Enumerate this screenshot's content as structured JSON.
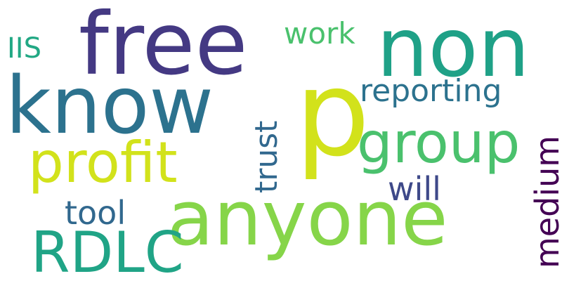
{
  "words": {
    "free": {
      "text": "free",
      "color": "#443983"
    },
    "non": {
      "text": "non",
      "color": "#1fa187"
    },
    "know": {
      "text": "know",
      "color": "#2c728e"
    },
    "p": {
      "text": "p",
      "color": "#d2e21b"
    },
    "profit": {
      "text": "profit",
      "color": "#d2e21b"
    },
    "group": {
      "text": "group",
      "color": "#4ac16d"
    },
    "anyone": {
      "text": "anyone",
      "color": "#86d549"
    },
    "RDLC": {
      "text": "RDLC",
      "color": "#20a486"
    },
    "tool": {
      "text": "tool",
      "color": "#31688e"
    },
    "will": {
      "text": "will",
      "color": "#3e4989"
    },
    "work": {
      "text": "work",
      "color": "#4ac16d"
    },
    "IIS": {
      "text": "IIS",
      "color": "#22a884"
    },
    "reporting": {
      "text": "reporting",
      "color": "#2c728e"
    },
    "trust": {
      "text": "trust",
      "color": "#31688e"
    },
    "medium": {
      "text": "medium",
      "color": "#440154"
    }
  }
}
